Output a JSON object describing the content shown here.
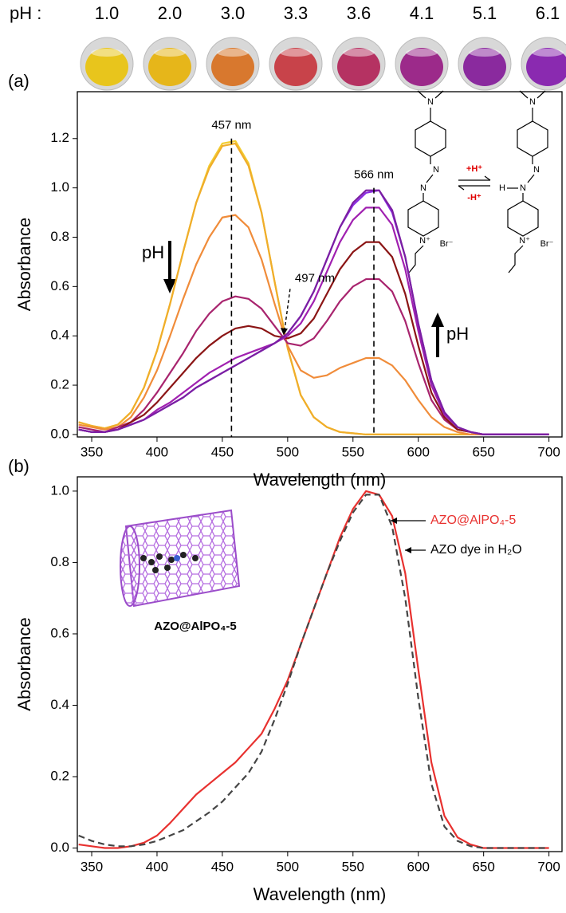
{
  "chart_data": [
    {
      "type": "line",
      "panel_label": "(a)",
      "ph_label": "pH :",
      "vials": [
        {
          "label": "1.0",
          "color": "#e8c51c"
        },
        {
          "label": "2.0",
          "color": "#e6b61a"
        },
        {
          "label": "3.0",
          "color": "#d8782e"
        },
        {
          "label": "3.3",
          "color": "#c8434a"
        },
        {
          "label": "3.6",
          "color": "#b53262"
        },
        {
          "label": "4.1",
          "color": "#9c2a8a"
        },
        {
          "label": "5.1",
          "color": "#8a2a9e"
        },
        {
          "label": "6.1",
          "color": "#8a2ab0"
        }
      ],
      "xlabel": "Wavelength (nm)",
      "ylabel": "Absorbance",
      "xlim": [
        339,
        710
      ],
      "xticks": [
        350,
        400,
        450,
        500,
        550,
        600,
        650,
        700
      ],
      "ylim": [
        -0.01,
        1.39
      ],
      "yticks": [
        {
          "value": 0,
          "label": "0.0"
        },
        0.2,
        0.4,
        0.6,
        0.8,
        {
          "value": 1,
          "label": "1.0"
        },
        1.2
      ],
      "x": [
        340,
        350,
        360,
        370,
        380,
        390,
        400,
        410,
        420,
        430,
        440,
        450,
        460,
        470,
        480,
        490,
        500,
        510,
        520,
        530,
        540,
        550,
        560,
        570,
        580,
        590,
        600,
        610,
        620,
        630,
        640,
        650,
        660,
        670,
        680,
        690,
        700
      ],
      "series": [
        {
          "color": "#f2cc30",
          "values": [
            0.05,
            0.035,
            0.025,
            0.04,
            0.09,
            0.19,
            0.34,
            0.53,
            0.74,
            0.94,
            1.09,
            1.18,
            1.19,
            1.1,
            0.9,
            0.62,
            0.35,
            0.16,
            0.07,
            0.03,
            0.01,
            0.005,
            0,
            0,
            0,
            0,
            0,
            0,
            0,
            0,
            0,
            0,
            0,
            0,
            0,
            0,
            0
          ]
        },
        {
          "color": "#f0ad2a",
          "values": [
            0.05,
            0.035,
            0.025,
            0.04,
            0.09,
            0.19,
            0.34,
            0.53,
            0.74,
            0.94,
            1.08,
            1.17,
            1.18,
            1.09,
            0.9,
            0.62,
            0.35,
            0.16,
            0.07,
            0.03,
            0.01,
            0.005,
            0,
            0,
            0,
            0,
            0,
            0,
            0,
            0,
            0,
            0,
            0,
            0,
            0,
            0,
            0
          ]
        },
        {
          "color": "#f08c3a",
          "values": [
            0.04,
            0.03,
            0.02,
            0.03,
            0.07,
            0.15,
            0.26,
            0.4,
            0.55,
            0.69,
            0.8,
            0.88,
            0.89,
            0.84,
            0.71,
            0.53,
            0.36,
            0.26,
            0.23,
            0.24,
            0.27,
            0.29,
            0.31,
            0.31,
            0.28,
            0.22,
            0.14,
            0.07,
            0.03,
            0.01,
            0,
            0,
            0,
            0,
            0,
            0,
            0
          ]
        },
        {
          "color": "#a8246e",
          "values": [
            0.03,
            0.02,
            0.01,
            0.03,
            0.05,
            0.1,
            0.17,
            0.25,
            0.33,
            0.42,
            0.49,
            0.54,
            0.56,
            0.55,
            0.51,
            0.44,
            0.37,
            0.36,
            0.39,
            0.46,
            0.54,
            0.6,
            0.63,
            0.63,
            0.58,
            0.46,
            0.29,
            0.14,
            0.06,
            0.02,
            0.01,
            0,
            0,
            0,
            0,
            0,
            0
          ]
        },
        {
          "color": "#8b1515",
          "values": [
            0.02,
            0.01,
            0.01,
            0.02,
            0.05,
            0.08,
            0.13,
            0.19,
            0.25,
            0.31,
            0.36,
            0.4,
            0.43,
            0.44,
            0.43,
            0.4,
            0.39,
            0.41,
            0.47,
            0.57,
            0.67,
            0.74,
            0.78,
            0.78,
            0.72,
            0.57,
            0.36,
            0.17,
            0.07,
            0.02,
            0.01,
            0,
            0,
            0,
            0,
            0,
            0
          ]
        },
        {
          "color": "#a020b0",
          "values": [
            0.02,
            0.01,
            0.01,
            0.02,
            0.04,
            0.06,
            0.1,
            0.13,
            0.17,
            0.21,
            0.25,
            0.28,
            0.31,
            0.33,
            0.35,
            0.37,
            0.4,
            0.45,
            0.54,
            0.66,
            0.78,
            0.87,
            0.92,
            0.92,
            0.85,
            0.67,
            0.42,
            0.2,
            0.08,
            0.03,
            0.01,
            0,
            0,
            0,
            0,
            0,
            0
          ]
        },
        {
          "color": "#8a2be2",
          "values": [
            0.02,
            0.01,
            0.01,
            0.02,
            0.04,
            0.06,
            0.09,
            0.12,
            0.15,
            0.19,
            0.22,
            0.25,
            0.28,
            0.31,
            0.34,
            0.37,
            0.41,
            0.48,
            0.58,
            0.71,
            0.84,
            0.93,
            0.98,
            0.99,
            0.9,
            0.72,
            0.45,
            0.22,
            0.09,
            0.03,
            0.01,
            0,
            0,
            0,
            0,
            0,
            0
          ]
        },
        {
          "color": "#7b1fa2",
          "values": [
            0.02,
            0.01,
            0.01,
            0.02,
            0.04,
            0.06,
            0.09,
            0.12,
            0.15,
            0.19,
            0.22,
            0.25,
            0.28,
            0.31,
            0.34,
            0.37,
            0.41,
            0.48,
            0.58,
            0.71,
            0.84,
            0.94,
            0.99,
            0.99,
            0.91,
            0.72,
            0.45,
            0.22,
            0.09,
            0.03,
            0.01,
            0,
            0,
            0,
            0,
            0,
            0
          ]
        }
      ],
      "peaks": [
        {
          "x": 457,
          "y": 1.2,
          "label": "457 nm"
        },
        {
          "x": 566,
          "y": 1.0,
          "label": "566 nm"
        }
      ],
      "isosbestic": {
        "x": 497,
        "y": 0.39,
        "label": "497 nm"
      },
      "trend_label": "pH",
      "structure": {
        "n": "N",
        "n_plus": "N⁺",
        "bromide": "Br⁻",
        "h": "H",
        "add_proton": "+H⁺",
        "remove_proton": "-H⁺"
      }
    },
    {
      "type": "line",
      "panel_label": "(b)",
      "xlabel": "Wavelength (nm)",
      "ylabel": "Absorbance",
      "xlim": [
        339,
        710
      ],
      "xticks": [
        350,
        400,
        450,
        500,
        550,
        600,
        650,
        700
      ],
      "ylim": [
        -0.01,
        1.04
      ],
      "yticks": [
        {
          "value": 0,
          "label": "0.0"
        },
        0.2,
        0.4,
        0.6,
        0.8,
        {
          "value": 1,
          "label": "1.0"
        }
      ],
      "legend": "upper right",
      "x": [
        340,
        350,
        360,
        370,
        380,
        390,
        400,
        410,
        420,
        430,
        440,
        450,
        460,
        470,
        480,
        490,
        500,
        510,
        520,
        530,
        540,
        550,
        560,
        570,
        580,
        590,
        600,
        610,
        620,
        630,
        640,
        650,
        660,
        670,
        680,
        690,
        700
      ],
      "series": [
        {
          "name": "AZO@AlPO₄-5",
          "color": "#e8312f",
          "values": [
            0.01,
            0.005,
            0,
            0,
            0.005,
            0.015,
            0.035,
            0.07,
            0.11,
            0.15,
            0.18,
            0.21,
            0.24,
            0.28,
            0.32,
            0.39,
            0.47,
            0.57,
            0.67,
            0.77,
            0.87,
            0.95,
            1,
            0.99,
            0.93,
            0.77,
            0.5,
            0.24,
            0.09,
            0.03,
            0.01,
            0,
            0,
            0,
            0,
            0,
            0
          ]
        },
        {
          "name": "AZO dye in H₂O",
          "color": "#444444",
          "dash": true,
          "values": [
            0.035,
            0.02,
            0.01,
            0.005,
            0.005,
            0.01,
            0.02,
            0.035,
            0.05,
            0.075,
            0.1,
            0.13,
            0.17,
            0.21,
            0.27,
            0.36,
            0.46,
            0.57,
            0.67,
            0.77,
            0.86,
            0.94,
            0.99,
            0.99,
            0.9,
            0.7,
            0.42,
            0.18,
            0.06,
            0.02,
            0.005,
            0,
            0,
            0,
            0,
            0,
            0
          ]
        }
      ],
      "inset_label": "AZO@AlPO₄-5"
    }
  ]
}
